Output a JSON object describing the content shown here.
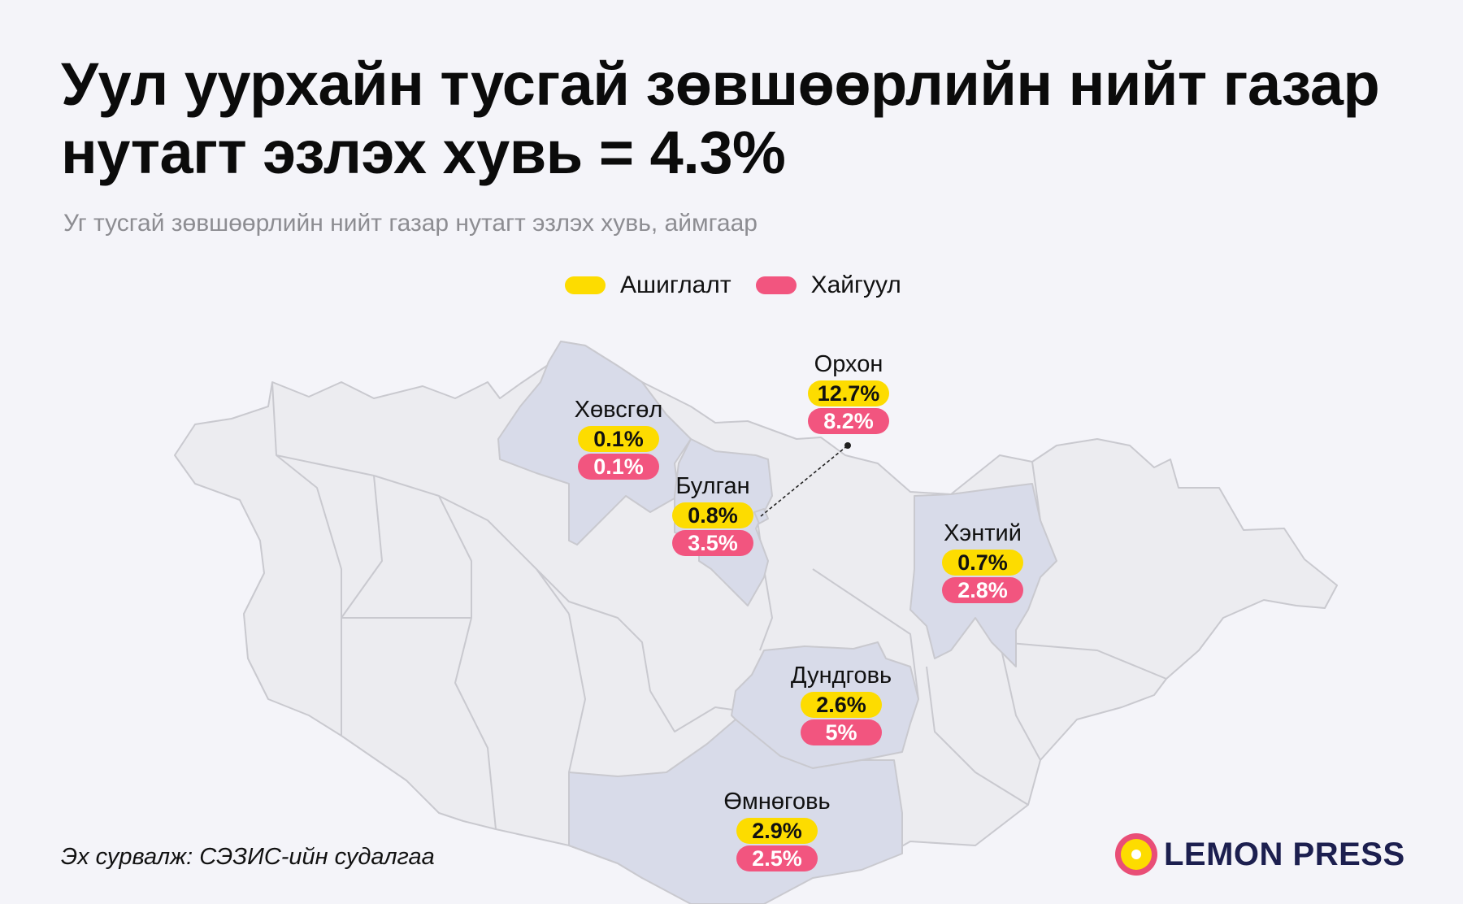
{
  "title": "Уул уурхайн тусгай зөвшөөрлийн нийт газар нутагт эзлэх хувь = 4.3%",
  "subtitle": "Уг тусгай зөвшөөрлийн нийт газар нутагт эзлэх хувь, аймгаар",
  "legend": {
    "use": {
      "label": "Ашиглалт",
      "color": "#fddc00"
    },
    "exp": {
      "label": "Хайгуул",
      "color": "#f2557f"
    }
  },
  "regions": {
    "khovsgol": {
      "name": "Хөвсгөл",
      "use": "0.1%",
      "exp": "0.1%"
    },
    "orkhon": {
      "name": "Орхон",
      "use": "12.7%",
      "exp": "8.2%"
    },
    "bulgan": {
      "name": "Булган",
      "use": "0.8%",
      "exp": "3.5%"
    },
    "khentii": {
      "name": "Хэнтий",
      "use": "0.7%",
      "exp": "2.8%"
    },
    "dundgovi": {
      "name": "Дундговь",
      "use": "2.6%",
      "exp": "5%"
    },
    "omnogovi": {
      "name": "Өмнөговь",
      "use": "2.9%",
      "exp": "2.5%"
    }
  },
  "colors": {
    "highlight_region": "#d8dbe9",
    "base_region": "#ececf0",
    "border": "#c9c9cf"
  },
  "source": "Эх сурвалж: СЭЗИС-ийн судалгаа",
  "logo": {
    "text": "LEMON PRESS"
  }
}
